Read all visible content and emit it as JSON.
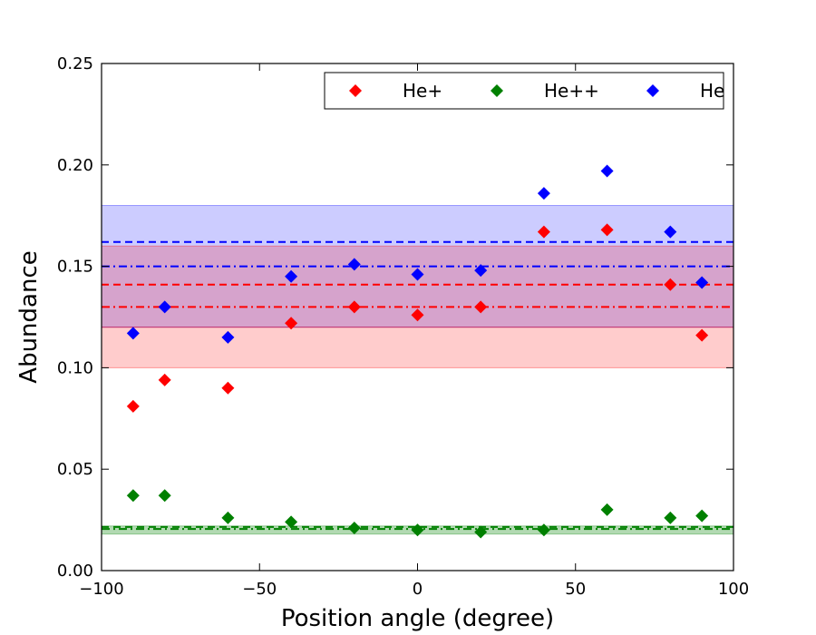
{
  "chart_data": {
    "type": "scatter",
    "title": "",
    "xlabel": "Position angle (degree)",
    "ylabel": "Abundance",
    "xlim": [
      -100,
      100
    ],
    "ylim": [
      0.0,
      0.25
    ],
    "grid": false,
    "legend_position": "top-right",
    "x_ticks": [
      {
        "value": -100,
        "label": "−100"
      },
      {
        "value": -50,
        "label": "−50"
      },
      {
        "value": 0,
        "label": "0"
      },
      {
        "value": 50,
        "label": "50"
      },
      {
        "value": 100,
        "label": "100"
      }
    ],
    "y_ticks": [
      {
        "value": 0.0,
        "label": "0.00"
      },
      {
        "value": 0.05,
        "label": "0.05"
      },
      {
        "value": 0.1,
        "label": "0.10"
      },
      {
        "value": 0.15,
        "label": "0.15"
      },
      {
        "value": 0.2,
        "label": "0.20"
      },
      {
        "value": 0.25,
        "label": "0.25"
      }
    ],
    "bands": [
      {
        "series": "He+",
        "low": 0.1,
        "high": 0.12,
        "color": "#ff0000",
        "opacity": 0.2
      },
      {
        "series": "He",
        "low": 0.12,
        "high": 0.18,
        "color": "#0000ff",
        "opacity": 0.2
      },
      {
        "series": "He+",
        "low": 0.12,
        "high": 0.16,
        "color": "#ff0000",
        "opacity": 0.2
      },
      {
        "series": "He++",
        "low": 0.018,
        "high": 0.022,
        "color": "#008000",
        "opacity": 0.3
      }
    ],
    "reference_lines": [
      {
        "series": "He",
        "value": 0.162,
        "style": "dashed",
        "color": "#0000ff"
      },
      {
        "series": "He",
        "value": 0.15,
        "style": "dashdot",
        "color": "#0000ff"
      },
      {
        "series": "He+",
        "value": 0.141,
        "style": "dashed",
        "color": "#ff0000"
      },
      {
        "series": "He+",
        "value": 0.13,
        "style": "dashdot",
        "color": "#ff0000"
      },
      {
        "series": "He++",
        "value": 0.0215,
        "style": "dashed",
        "color": "#008000"
      },
      {
        "series": "He++",
        "value": 0.0205,
        "style": "dashdot",
        "color": "#008000"
      }
    ],
    "series": [
      {
        "name": "He+",
        "color": "#ff0000",
        "marker": "diamond",
        "points": [
          {
            "x": -90,
            "y": 0.081
          },
          {
            "x": -80,
            "y": 0.094
          },
          {
            "x": -60,
            "y": 0.09
          },
          {
            "x": -40,
            "y": 0.122
          },
          {
            "x": -20,
            "y": 0.13
          },
          {
            "x": 0,
            "y": 0.126
          },
          {
            "x": 20,
            "y": 0.13
          },
          {
            "x": 40,
            "y": 0.167
          },
          {
            "x": 60,
            "y": 0.168
          },
          {
            "x": 80,
            "y": 0.141
          },
          {
            "x": 90,
            "y": 0.116
          }
        ]
      },
      {
        "name": "He++",
        "color": "#008000",
        "marker": "diamond",
        "points": [
          {
            "x": -90,
            "y": 0.037
          },
          {
            "x": -80,
            "y": 0.037
          },
          {
            "x": -60,
            "y": 0.026
          },
          {
            "x": -40,
            "y": 0.024
          },
          {
            "x": -20,
            "y": 0.021
          },
          {
            "x": 0,
            "y": 0.02
          },
          {
            "x": 20,
            "y": 0.019
          },
          {
            "x": 40,
            "y": 0.02
          },
          {
            "x": 60,
            "y": 0.03
          },
          {
            "x": 80,
            "y": 0.026
          },
          {
            "x": 90,
            "y": 0.027
          }
        ]
      },
      {
        "name": "He",
        "color": "#0000ff",
        "marker": "diamond",
        "points": [
          {
            "x": -90,
            "y": 0.117
          },
          {
            "x": -80,
            "y": 0.13
          },
          {
            "x": -60,
            "y": 0.115
          },
          {
            "x": -40,
            "y": 0.145
          },
          {
            "x": -20,
            "y": 0.151
          },
          {
            "x": 0,
            "y": 0.146
          },
          {
            "x": 20,
            "y": 0.148
          },
          {
            "x": 40,
            "y": 0.186
          },
          {
            "x": 60,
            "y": 0.197
          },
          {
            "x": 80,
            "y": 0.167
          },
          {
            "x": 90,
            "y": 0.142
          }
        ]
      }
    ]
  }
}
